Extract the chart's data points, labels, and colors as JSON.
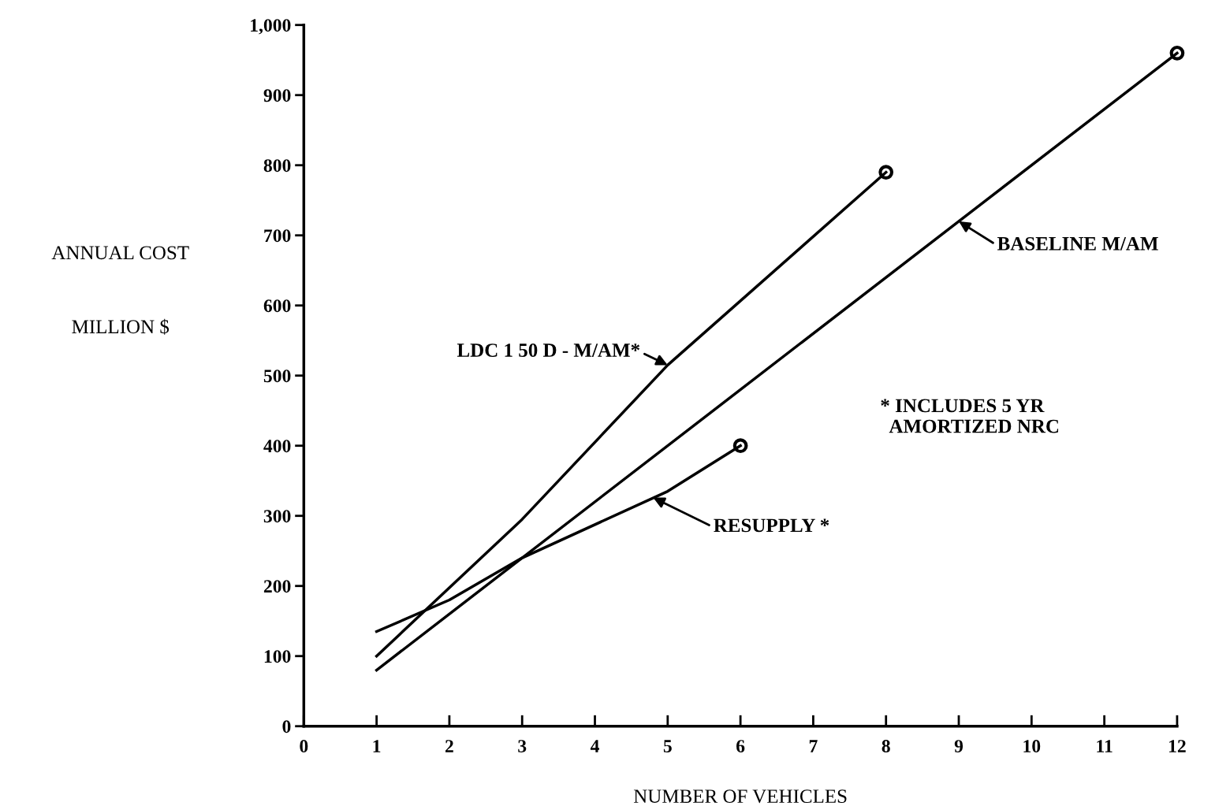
{
  "chart_data": {
    "type": "line",
    "xlabel": "NUMBER OF VEHICLES",
    "ylabel": "ANNUAL COST\n\nMILLION $",
    "series": [
      {
        "color": "#000000",
        "x": [
          1,
          3,
          5,
          8
        ],
        "values": [
          100,
          295,
          515,
          790
        ]
      },
      {
        "color": "#000000",
        "x": [
          1,
          12
        ],
        "values": [
          80,
          960
        ]
      },
      {
        "color": "#000000",
        "x": [
          1,
          2,
          3,
          5,
          6
        ],
        "values": [
          135,
          180,
          240,
          335,
          400
        ]
      },
      {
        "type": "scatter",
        "color": "#000000",
        "x": [
          8,
          12,
          6
        ],
        "values": [
          790,
          960,
          400
        ],
        "marker": "circle"
      }
    ],
    "line_style": "solid",
    "grid": false,
    "legend": false,
    "xlim": [
      0,
      12
    ],
    "ylim": [
      0,
      1000
    ],
    "xticks": [
      0,
      1,
      2,
      3,
      4,
      5,
      6,
      7,
      8,
      9,
      10,
      11,
      12
    ],
    "yticks": [
      0,
      100,
      200,
      300,
      400,
      500,
      600,
      700,
      800,
      900,
      {
        "value": 1000,
        "label": "1,000"
      }
    ],
    "annotations": [
      {
        "text": "LDC 1 50 D - M/AM*",
        "x": 5,
        "y": 515
      },
      {
        "text": "BASELINE M/AM",
        "x": 9,
        "y": 720
      },
      {
        "text": "RESUPPLY *",
        "x": 4.8,
        "y": 326
      },
      "* INCLUDES 5 YR\n  AMORTIZED NRC"
    ]
  }
}
